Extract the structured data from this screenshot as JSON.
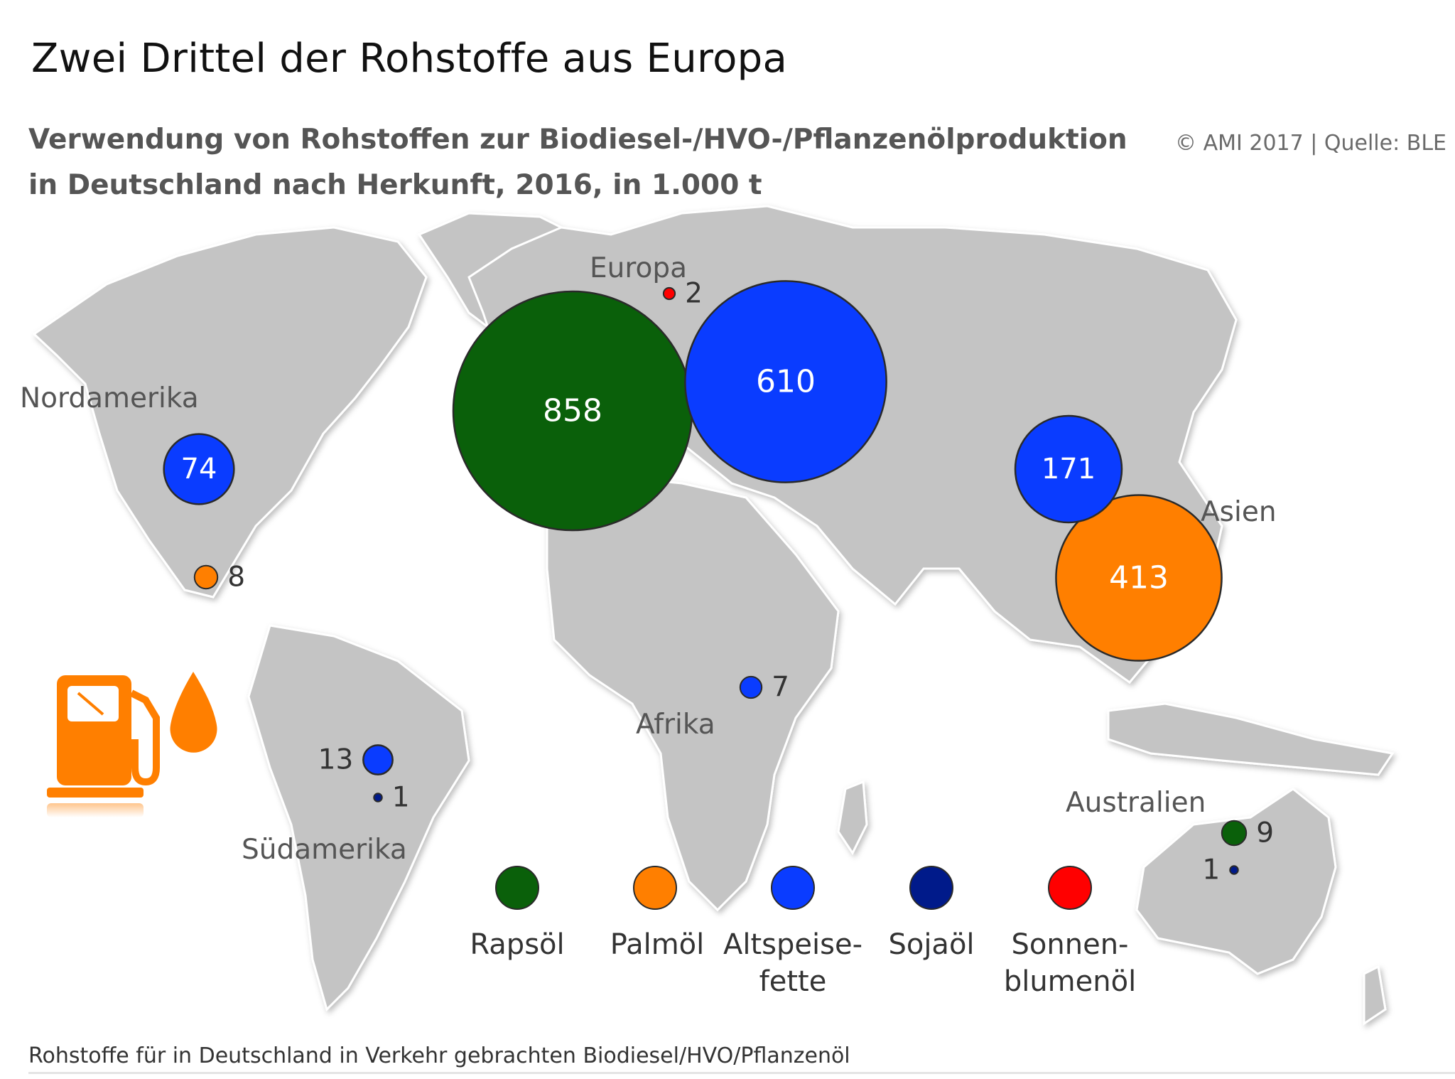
{
  "header": {
    "title": "Zwei Drittel der Rohstoffe aus Europa",
    "subtitle_line1": "Verwendung von Rohstoffen zur Biodiesel-/HVO-/Pflanzenölproduktion",
    "subtitle_line2": "in Deutschland nach Herkunft, 2016, in 1.000 t",
    "credit": "© AMI 2017 | Quelle: BLE"
  },
  "footnote": "Rohstoffe für in Deutschland in Verkehr gebrachten Biodiesel/HVO/Pflanzenöl",
  "icon": "fuel-pump-with-oil-drop-icon",
  "chart_data": {
    "type": "bubble-map",
    "unit": "1.000 t",
    "regions": [
      "Europa",
      "Nordamerika",
      "Asien",
      "Afrika",
      "Südamerika",
      "Australien"
    ],
    "categories": [
      {
        "key": "raps",
        "name": "Rapsöl",
        "color": "#0a600a"
      },
      {
        "key": "palm",
        "name": "Palmöl",
        "color": "#ff7f00"
      },
      {
        "key": "alt",
        "name": "Altspeise-fette",
        "name_lines": [
          "Altspeise-",
          "fette"
        ],
        "color": "#0a3cff"
      },
      {
        "key": "soja",
        "name": "Sojaöl",
        "color": "#001a8a"
      },
      {
        "key": "sonnen",
        "name": "Sonnen-blumenöl",
        "name_lines": [
          "Sonnen-",
          "blumenöl"
        ],
        "color": "#ff0000"
      }
    ],
    "values": [
      {
        "region": "Europa",
        "category": "raps",
        "value": 858
      },
      {
        "region": "Europa",
        "category": "alt",
        "value": 610
      },
      {
        "region": "Europa",
        "category": "sonnen",
        "value": 2
      },
      {
        "region": "Nordamerika",
        "category": "alt",
        "value": 74
      },
      {
        "region": "Nordamerika",
        "category": "palm",
        "value": 8
      },
      {
        "region": "Asien",
        "category": "alt",
        "value": 171
      },
      {
        "region": "Asien",
        "category": "palm",
        "value": 413
      },
      {
        "region": "Afrika",
        "category": "alt",
        "value": 7
      },
      {
        "region": "Südamerika",
        "category": "alt",
        "value": 13
      },
      {
        "region": "Südamerika",
        "category": "soja",
        "value": 1
      },
      {
        "region": "Australien",
        "category": "raps",
        "value": 9
      },
      {
        "region": "Australien",
        "category": "soja",
        "value": 1
      }
    ]
  }
}
